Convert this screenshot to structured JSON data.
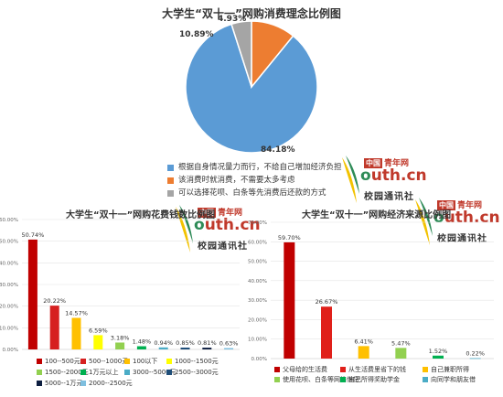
{
  "chart_data": [
    {
      "type": "pie",
      "title": "大学生“双十一”网购消费理念比例图",
      "slices": [
        {
          "label": "根据自身情况量力而行，不给自己增加经济负担",
          "value": 84.18,
          "value_label": "84.18%",
          "color": "#5b9bd5"
        },
        {
          "label": "该消费时就消费，不需要太多考虑",
          "value": 10.89,
          "value_label": "10.89%",
          "color": "#ed7d31"
        },
        {
          "label": "可以选择花呗、白条等先消费后还款的方式",
          "value": 4.93,
          "value_label": "4.93%",
          "color": "#a5a5a5"
        }
      ],
      "legend_position": "bottom"
    },
    {
      "type": "bar",
      "title": "大学生“双十一”网购花费钱数比例图",
      "categories": [
        "100--500元",
        "500--1000元",
        "100以下",
        "1000--1500元",
        "1500--2000元",
        "1万元以上",
        "3000--5000元",
        "2500--3000元",
        "5000--1万元",
        "2000--2500元"
      ],
      "values": [
        50.74,
        20.22,
        14.57,
        6.59,
        3.18,
        1.48,
        0.94,
        0.85,
        0.81,
        0.63
      ],
      "value_labels": [
        "50.74%",
        "20.22%",
        "14.57%",
        "6.59%",
        "3.18%",
        "1.48%",
        "0.94%",
        "0.85%",
        "0.81%",
        "0.63%"
      ],
      "colors": [
        "#c00000",
        "#d62020",
        "#ffc000",
        "#ffff00",
        "#92d050",
        "#00b050",
        "#4bacc6",
        "#1f4e79",
        "#0d1e40",
        "#7fbfdf"
      ],
      "yticks": [
        "0.00%",
        "10.00%",
        "20.00%",
        "30.00%",
        "40.00%",
        "50.00%",
        "60.00%"
      ],
      "ylim": [
        0,
        60
      ],
      "grid": true,
      "legend_position": "bottom"
    },
    {
      "type": "bar",
      "title": "大学生“双十一”网购经济来源比例图",
      "categories": [
        "父母给的生活费",
        "从生活费里省下的钱",
        "自己兼职所得",
        "使用花呗、白条等网络借贷",
        "自己所得奖助学金",
        "向同学和朋友借"
      ],
      "values": [
        59.7,
        26.67,
        6.41,
        5.47,
        1.52,
        0.22
      ],
      "value_labels": [
        "59.70%",
        "26.67%",
        "6.41%",
        "5.47%",
        "1.52%",
        "0.22%"
      ],
      "colors": [
        "#c00000",
        "#e0201a",
        "#ffc000",
        "#92d050",
        "#00b050",
        "#4bacc6"
      ],
      "yticks": [
        "0.00%",
        "10.00%",
        "20.00%",
        "30.00%",
        "40.00%",
        "50.00%",
        "60.00%",
        "70.00%"
      ],
      "ylim": [
        0,
        70
      ],
      "grid": true,
      "legend_position": "bottom"
    }
  ],
  "logo": {
    "tag": "中国",
    "name_cn": "青年网",
    "brand_o": "o",
    "brand_rest": "uth.cn",
    "sub": "校园通讯社"
  }
}
